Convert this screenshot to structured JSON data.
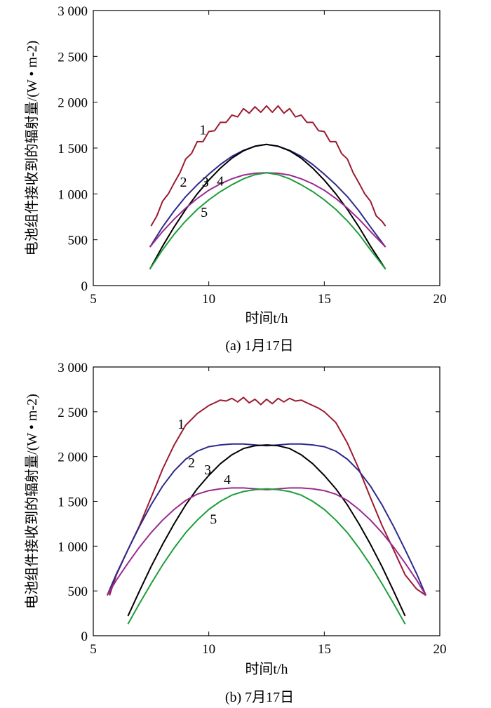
{
  "chart_data": [
    {
      "type": "line",
      "caption": "(a) 1月17日",
      "xlabel": "时间t/h",
      "ylabel": "电池组件接收到的辐射量/(W • m-2)",
      "xlim": [
        5,
        20
      ],
      "ylim": [
        0,
        3000
      ],
      "xticks": [
        5,
        10,
        15,
        20
      ],
      "xtick_labels": [
        "5",
        "10",
        "15",
        "20"
      ],
      "yticks": [
        0,
        500,
        1000,
        1500,
        2000,
        2500,
        3000
      ],
      "ytick_labels": [
        "0",
        "500",
        "1 000",
        "1 500",
        "2 000",
        "2 500",
        "3 000"
      ],
      "grid": false,
      "series": [
        {
          "label": "1",
          "color": "#9b1b30",
          "x": [
            7.5,
            7.75,
            8.0,
            8.25,
            8.5,
            8.75,
            9.0,
            9.25,
            9.5,
            9.75,
            10.0,
            10.25,
            10.5,
            10.75,
            11.0,
            11.25,
            11.5,
            11.75,
            12.0,
            12.25,
            12.5,
            12.75,
            13.0,
            13.25,
            13.5,
            13.75,
            14.0,
            14.25,
            14.5,
            14.75,
            15.0,
            15.25,
            15.5,
            15.75,
            16.0,
            16.25,
            16.5,
            16.75,
            17.0,
            17.25,
            17.5,
            17.65
          ],
          "y": [
            650,
            760,
            920,
            1000,
            1120,
            1230,
            1380,
            1440,
            1570,
            1570,
            1680,
            1690,
            1780,
            1780,
            1860,
            1840,
            1930,
            1880,
            1950,
            1890,
            1960,
            1890,
            1960,
            1880,
            1930,
            1840,
            1860,
            1780,
            1780,
            1690,
            1680,
            1570,
            1570,
            1440,
            1380,
            1230,
            1120,
            1000,
            920,
            760,
            700,
            650
          ]
        },
        {
          "label": "2",
          "color": "#2e2a8c",
          "x": [
            7.45,
            8.0,
            8.5,
            9.0,
            9.5,
            10.0,
            10.5,
            11.0,
            11.5,
            12.0,
            12.5,
            13.0,
            13.5,
            14.0,
            14.5,
            15.0,
            15.5,
            16.0,
            16.5,
            17.0,
            17.65
          ],
          "y": [
            420,
            640,
            815,
            970,
            1100,
            1215,
            1320,
            1410,
            1475,
            1520,
            1540,
            1520,
            1475,
            1410,
            1320,
            1215,
            1100,
            970,
            815,
            640,
            420
          ]
        },
        {
          "label": "3",
          "color": "#000000",
          "x": [
            7.45,
            8.0,
            8.5,
            9.0,
            9.5,
            10.0,
            10.5,
            11.0,
            11.5,
            12.0,
            12.5,
            13.0,
            13.5,
            14.0,
            14.5,
            15.0,
            15.5,
            16.0,
            16.5,
            17.0,
            17.65
          ],
          "y": [
            180,
            430,
            640,
            830,
            1000,
            1150,
            1280,
            1390,
            1470,
            1520,
            1540,
            1520,
            1470,
            1390,
            1280,
            1150,
            1000,
            830,
            640,
            430,
            180
          ]
        },
        {
          "label": "4",
          "color": "#9b2a8e",
          "x": [
            7.45,
            8.0,
            8.5,
            9.0,
            9.5,
            10.0,
            10.5,
            11.0,
            11.5,
            12.0,
            12.5,
            13.0,
            13.5,
            14.0,
            14.5,
            15.0,
            15.5,
            16.0,
            16.5,
            17.0,
            17.65
          ],
          "y": [
            420,
            590,
            725,
            845,
            950,
            1040,
            1110,
            1165,
            1205,
            1225,
            1230,
            1225,
            1205,
            1165,
            1110,
            1040,
            950,
            845,
            725,
            590,
            420
          ]
        },
        {
          "label": "5",
          "color": "#1e9e3a",
          "x": [
            7.45,
            8.0,
            8.5,
            9.0,
            9.5,
            10.0,
            10.5,
            11.0,
            11.5,
            12.0,
            12.5,
            13.0,
            13.5,
            14.0,
            14.5,
            15.0,
            15.5,
            16.0,
            16.5,
            17.0,
            17.65
          ],
          "y": [
            180,
            390,
            560,
            705,
            830,
            935,
            1025,
            1100,
            1165,
            1210,
            1230,
            1210,
            1165,
            1100,
            1025,
            935,
            830,
            705,
            560,
            390,
            180
          ]
        }
      ],
      "annotations": [
        {
          "text": "1",
          "x": 9.75,
          "y": 1650
        },
        {
          "text": "2",
          "x": 8.9,
          "y": 1080
        },
        {
          "text": "3",
          "x": 9.85,
          "y": 1080
        },
        {
          "text": "4",
          "x": 10.5,
          "y": 1090
        },
        {
          "text": "5",
          "x": 9.8,
          "y": 750
        }
      ]
    },
    {
      "type": "line",
      "caption": "(b) 7月17日",
      "xlabel": "时间t/h",
      "ylabel": "电池组件接收到的辐射量/(W • m-2)",
      "xlim": [
        5,
        20
      ],
      "ylim": [
        0,
        3000
      ],
      "xticks": [
        5,
        10,
        15,
        20
      ],
      "xtick_labels": [
        "5",
        "10",
        "15",
        "20"
      ],
      "yticks": [
        0,
        500,
        1000,
        1500,
        2000,
        2500,
        3000
      ],
      "ytick_labels": [
        "0",
        "500",
        "1 000",
        "1 500",
        "2 000",
        "2 500",
        "3 000"
      ],
      "grid": false,
      "series": [
        {
          "label": "1",
          "color": "#9b1b30",
          "x": [
            5.7,
            6.0,
            6.5,
            7.0,
            7.5,
            8.0,
            8.5,
            9.0,
            9.5,
            10.0,
            10.25,
            10.5,
            10.75,
            11.0,
            11.25,
            11.5,
            11.75,
            12.0,
            12.25,
            12.5,
            12.75,
            13.0,
            13.25,
            13.5,
            13.75,
            14.0,
            14.25,
            14.5,
            14.75,
            15.0,
            15.5,
            16.0,
            16.5,
            17.0,
            17.5,
            18.0,
            18.5,
            19.0,
            19.4
          ],
          "y": [
            450,
            680,
            960,
            1230,
            1540,
            1860,
            2130,
            2350,
            2480,
            2570,
            2600,
            2630,
            2620,
            2650,
            2610,
            2660,
            2600,
            2640,
            2580,
            2640,
            2590,
            2650,
            2610,
            2650,
            2620,
            2630,
            2600,
            2570,
            2540,
            2500,
            2380,
            2150,
            1860,
            1540,
            1230,
            960,
            680,
            520,
            450
          ]
        },
        {
          "label": "2",
          "color": "#2e2a8c",
          "x": [
            5.6,
            6.0,
            6.5,
            7.0,
            7.5,
            8.0,
            8.5,
            9.0,
            9.5,
            10.0,
            10.5,
            11.0,
            11.5,
            12.0,
            12.5,
            13.0,
            13.5,
            14.0,
            14.5,
            15.0,
            15.5,
            16.0,
            16.5,
            17.0,
            17.5,
            18.0,
            18.5,
            19.0,
            19.4
          ],
          "y": [
            450,
            690,
            960,
            1220,
            1460,
            1670,
            1840,
            1970,
            2060,
            2110,
            2130,
            2140,
            2140,
            2130,
            2120,
            2130,
            2140,
            2140,
            2130,
            2110,
            2060,
            1970,
            1840,
            1670,
            1460,
            1220,
            960,
            690,
            450
          ]
        },
        {
          "label": "3",
          "color": "#000000",
          "x": [
            6.5,
            7.0,
            7.5,
            8.0,
            8.5,
            9.0,
            9.5,
            10.0,
            10.5,
            11.0,
            11.5,
            12.0,
            12.5,
            13.0,
            13.5,
            14.0,
            14.5,
            15.0,
            15.5,
            16.0,
            16.5,
            17.0,
            17.5,
            18.0,
            18.5
          ],
          "y": [
            220,
            500,
            770,
            1020,
            1250,
            1460,
            1640,
            1790,
            1920,
            2020,
            2090,
            2120,
            2130,
            2120,
            2090,
            2020,
            1920,
            1790,
            1640,
            1460,
            1250,
            1020,
            770,
            500,
            220
          ]
        },
        {
          "label": "4",
          "color": "#9b2a8e",
          "x": [
            5.6,
            6.0,
            6.5,
            7.0,
            7.5,
            8.0,
            8.5,
            9.0,
            9.5,
            10.0,
            10.5,
            11.0,
            11.5,
            12.0,
            12.5,
            13.0,
            13.5,
            14.0,
            14.5,
            15.0,
            15.5,
            16.0,
            16.5,
            17.0,
            17.5,
            18.0,
            18.5,
            19.0,
            19.4
          ],
          "y": [
            450,
            620,
            810,
            990,
            1150,
            1290,
            1410,
            1510,
            1580,
            1620,
            1640,
            1650,
            1650,
            1640,
            1630,
            1640,
            1650,
            1650,
            1640,
            1620,
            1580,
            1510,
            1410,
            1290,
            1150,
            990,
            810,
            620,
            450
          ]
        },
        {
          "label": "5",
          "color": "#1e9e3a",
          "x": [
            6.5,
            7.0,
            7.5,
            8.0,
            8.5,
            9.0,
            9.5,
            10.0,
            10.5,
            11.0,
            11.5,
            12.0,
            12.5,
            13.0,
            13.5,
            14.0,
            14.5,
            15.0,
            15.5,
            16.0,
            16.5,
            17.0,
            17.5,
            18.0,
            18.5
          ],
          "y": [
            130,
            360,
            580,
            790,
            980,
            1150,
            1290,
            1410,
            1500,
            1570,
            1610,
            1630,
            1640,
            1630,
            1610,
            1570,
            1500,
            1410,
            1290,
            1150,
            980,
            790,
            580,
            360,
            130
          ]
        }
      ],
      "annotations": [
        {
          "text": "1",
          "x": 8.8,
          "y": 2310
        },
        {
          "text": "2",
          "x": 9.25,
          "y": 1880
        },
        {
          "text": "3",
          "x": 9.95,
          "y": 1800
        },
        {
          "text": "4",
          "x": 10.8,
          "y": 1690
        },
        {
          "text": "5",
          "x": 10.2,
          "y": 1250
        }
      ]
    }
  ]
}
